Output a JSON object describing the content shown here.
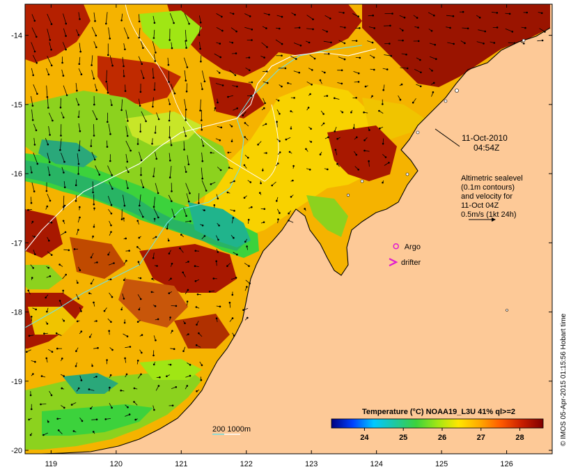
{
  "map": {
    "date_line1": "11-Oct-2010",
    "date_line2": "04:54Z",
    "velocity_note": [
      "Altimetric sealevel",
      "(0.1m contours)",
      "and velocity for",
      "11-Oct 04Z",
      "0.5m/s (1kt 24h)"
    ],
    "argo_label": "Argo",
    "drifter_label": "drifter",
    "depth_scale_label": "200  1000m",
    "credit": "© IMOS 05-Apr-2015 01:15:56 Hobart time",
    "colors": {
      "land": "#fdc997",
      "frame": "#000000",
      "depth_200m": "#6fe0e6",
      "depth_1000m": "#ffffff",
      "argo_marker": "#e01ad0",
      "drifter_marker": "#e01ad0"
    },
    "x_axis": {
      "unit": "longitude",
      "range": [
        118.6,
        126.7
      ],
      "ticks": [
        119,
        120,
        121,
        122,
        123,
        124,
        125,
        126
      ],
      "labels": [
        "119",
        "120",
        "121",
        "122",
        "123",
        "124",
        "125",
        "126"
      ]
    },
    "y_axis": {
      "unit": "latitude",
      "range": [
        -20.05,
        -13.55
      ],
      "ticks": [
        -14,
        -15,
        -16,
        -17,
        -18,
        -19,
        -20
      ],
      "labels": [
        "-14",
        "-15",
        "-16",
        "-17",
        "-18",
        "-19",
        "-20"
      ]
    },
    "argo": {
      "lon": 124.3,
      "lat": -17.05
    },
    "drifter": {
      "lon": 124.25,
      "lat": -17.28
    }
  },
  "colorbar": {
    "title": "Temperature (°C) NOAA19_L3U 41% ql>=2",
    "range": [
      23.15,
      28.6
    ],
    "ticks": [
      24,
      25,
      26,
      27,
      28
    ],
    "labels": [
      "24",
      "25",
      "26",
      "27",
      "28"
    ],
    "stops": [
      "#00007f",
      "#0040ff",
      "#00c8ff",
      "#1ec8a0",
      "#3cd23c",
      "#a0e614",
      "#ffe600",
      "#ffaa00",
      "#ff5a00",
      "#c81e00",
      "#7f0000"
    ]
  }
}
